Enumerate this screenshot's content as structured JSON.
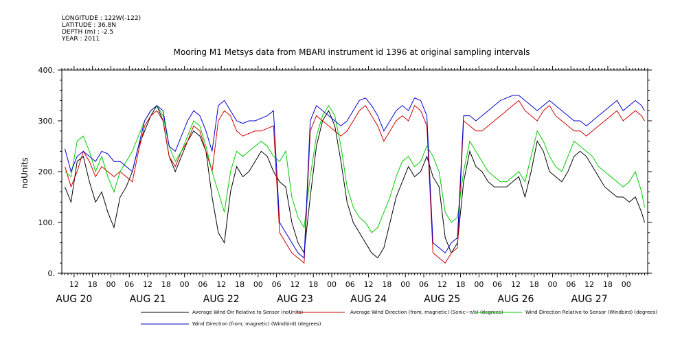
{
  "meta": {
    "longitude": "LONGITUDE : 122W(-122)",
    "latitude": "LATITUDE : 36.8N",
    "depth": "DEPTH (m) : -2.5",
    "year": "YEAR : 2011"
  },
  "chart_data": {
    "type": "line",
    "title": "Mooring M1 Metsys data from MBARI instrument id 1396 at original sampling intervals",
    "ylabel": "noUnits",
    "ylim": [
      0,
      400
    ],
    "yticks": [
      0,
      100,
      200,
      300,
      400
    ],
    "ytick_labels": [
      "0.",
      "100.",
      "200.",
      "300.",
      "400."
    ],
    "xlim": [
      8,
      199
    ],
    "hour_ticks": [
      12,
      18,
      24,
      30,
      36,
      42,
      48,
      54,
      60,
      66,
      72,
      78,
      84,
      90,
      96,
      102,
      108,
      114,
      120,
      126,
      132,
      138,
      144,
      150,
      156,
      162,
      168,
      174,
      180,
      186,
      192
    ],
    "hour_tick_labels": [
      "12",
      "18",
      "00",
      "06",
      "12",
      "18",
      "00",
      "06",
      "12",
      "18",
      "00",
      "06",
      "12",
      "18",
      "00",
      "06",
      "12",
      "18",
      "00",
      "06",
      "12",
      "18",
      "00",
      "06",
      "12",
      "18",
      "00",
      "06",
      "12",
      "18",
      "00"
    ],
    "day_labels": [
      {
        "hour": 12,
        "label": "AUG 20"
      },
      {
        "hour": 36,
        "label": "AUG 21"
      },
      {
        "hour": 60,
        "label": "AUG 22"
      },
      {
        "hour": 84,
        "label": "AUG 23"
      },
      {
        "hour": 108,
        "label": "AUG 24"
      },
      {
        "hour": 132,
        "label": "AUG 25"
      },
      {
        "hour": 156,
        "label": "AUG 26"
      },
      {
        "hour": 180,
        "label": "AUG 27"
      }
    ],
    "series": [
      {
        "name": "Average Wind Dir Relative to Sensor (noUnits)",
        "color": "#000000",
        "x": [
          9,
          11,
          13,
          15,
          17,
          19,
          21,
          23,
          25,
          27,
          29,
          31,
          33,
          35,
          37,
          39,
          41,
          43,
          45,
          47,
          49,
          51,
          53,
          55,
          57,
          59,
          61,
          63,
          65,
          67,
          69,
          71,
          73,
          75,
          77,
          79,
          81,
          83,
          85,
          87,
          89,
          91,
          93,
          95,
          97,
          99,
          101,
          103,
          105,
          107,
          109,
          111,
          113,
          115,
          117,
          119,
          121,
          123,
          125,
          127,
          129,
          131,
          133,
          135,
          137,
          139,
          141,
          143,
          145,
          147,
          149,
          151,
          153,
          155,
          157,
          159,
          161,
          163,
          165,
          167,
          169,
          171,
          173,
          175,
          177,
          179,
          181,
          183,
          185,
          187,
          189,
          191,
          193,
          195,
          197,
          198
        ],
        "y": [
          170,
          140,
          220,
          230,
          180,
          140,
          160,
          120,
          90,
          150,
          170,
          200,
          250,
          280,
          310,
          330,
          300,
          230,
          200,
          230,
          260,
          280,
          270,
          240,
          150,
          80,
          60,
          160,
          210,
          190,
          200,
          220,
          240,
          230,
          200,
          180,
          170,
          100,
          60,
          40,
          150,
          250,
          300,
          320,
          290,
          220,
          140,
          100,
          80,
          60,
          40,
          30,
          50,
          100,
          150,
          180,
          210,
          190,
          200,
          230,
          190,
          170,
          70,
          40,
          60,
          180,
          240,
          210,
          200,
          180,
          170,
          170,
          170,
          180,
          190,
          150,
          200,
          260,
          240,
          200,
          190,
          180,
          200,
          230,
          240,
          230,
          210,
          190,
          170,
          160,
          150,
          150,
          140,
          150,
          120,
          100
        ]
      },
      {
        "name": "Average Wind Direction (from, magnetic) (Sonic~n/s) (degrees)",
        "color": "#d00000",
        "x": [
          9,
          11,
          13,
          15,
          17,
          19,
          21,
          23,
          25,
          27,
          29,
          31,
          33,
          35,
          37,
          39,
          41,
          43,
          45,
          47,
          49,
          51,
          53,
          55,
          57,
          59,
          61,
          63,
          65,
          67,
          69,
          71,
          73,
          75,
          77,
          79,
          81,
          83,
          85,
          87,
          89,
          91,
          93,
          95,
          97,
          99,
          101,
          103,
          105,
          107,
          109,
          111,
          113,
          115,
          117,
          119,
          121,
          123,
          125,
          127,
          129,
          131,
          133,
          135,
          137,
          139,
          141,
          143,
          145,
          147,
          149,
          151,
          153,
          155,
          157,
          159,
          161,
          163,
          165,
          167,
          169,
          171,
          173,
          175,
          177,
          179,
          181,
          183,
          185,
          187,
          189,
          191,
          193,
          195,
          197,
          198
        ],
        "y": [
          210,
          170,
          200,
          240,
          220,
          190,
          210,
          200,
          190,
          200,
          190,
          180,
          240,
          290,
          310,
          320,
          300,
          230,
          210,
          240,
          260,
          290,
          280,
          240,
          200,
          300,
          320,
          310,
          280,
          270,
          275,
          280,
          280,
          285,
          290,
          80,
          60,
          40,
          30,
          20,
          280,
          310,
          300,
          290,
          280,
          270,
          280,
          300,
          320,
          330,
          310,
          290,
          260,
          280,
          300,
          310,
          300,
          330,
          320,
          290,
          40,
          30,
          20,
          40,
          50,
          300,
          290,
          280,
          280,
          290,
          300,
          310,
          320,
          330,
          340,
          320,
          310,
          300,
          320,
          330,
          310,
          300,
          290,
          280,
          280,
          270,
          280,
          290,
          300,
          310,
          320,
          300,
          310,
          320,
          310,
          300
        ]
      },
      {
        "name": "Wind Direction Relative to Sensor (Windbird) (degrees)",
        "color": "#00cc00",
        "x": [
          9,
          11,
          13,
          15,
          17,
          19,
          21,
          23,
          25,
          27,
          29,
          31,
          33,
          35,
          37,
          39,
          41,
          43,
          45,
          47,
          49,
          51,
          53,
          55,
          57,
          59,
          61,
          63,
          65,
          67,
          69,
          71,
          73,
          75,
          77,
          79,
          81,
          83,
          85,
          87,
          89,
          91,
          93,
          95,
          97,
          99,
          101,
          103,
          105,
          107,
          109,
          111,
          113,
          115,
          117,
          119,
          121,
          123,
          125,
          127,
          129,
          131,
          133,
          135,
          137,
          139,
          141,
          143,
          145,
          147,
          149,
          151,
          153,
          155,
          157,
          159,
          161,
          163,
          165,
          167,
          169,
          171,
          173,
          175,
          177,
          179,
          181,
          183,
          185,
          187,
          189,
          191,
          193,
          195,
          197,
          198
        ],
        "y": [
          200,
          190,
          260,
          270,
          240,
          200,
          230,
          190,
          160,
          200,
          220,
          240,
          270,
          300,
          320,
          330,
          310,
          250,
          220,
          240,
          270,
          300,
          290,
          250,
          200,
          160,
          120,
          200,
          240,
          230,
          240,
          250,
          260,
          250,
          230,
          220,
          240,
          150,
          110,
          90,
          190,
          270,
          310,
          330,
          310,
          250,
          170,
          130,
          110,
          100,
          80,
          90,
          120,
          150,
          190,
          220,
          230,
          210,
          220,
          250,
          230,
          200,
          120,
          100,
          110,
          200,
          260,
          240,
          220,
          200,
          190,
          180,
          180,
          190,
          200,
          180,
          230,
          280,
          260,
          230,
          210,
          200,
          230,
          260,
          250,
          240,
          230,
          210,
          200,
          190,
          180,
          170,
          180,
          200,
          160,
          130
        ]
      },
      {
        "name": "Wind Direction (from, magnetic) (Windbird) (degrees)",
        "color": "#0000d0",
        "x": [
          9,
          11,
          13,
          15,
          17,
          19,
          21,
          23,
          25,
          27,
          29,
          31,
          33,
          35,
          37,
          39,
          41,
          43,
          45,
          47,
          49,
          51,
          53,
          55,
          57,
          59,
          61,
          63,
          65,
          67,
          69,
          71,
          73,
          75,
          77,
          79,
          81,
          83,
          85,
          87,
          89,
          91,
          93,
          95,
          97,
          99,
          101,
          103,
          105,
          107,
          109,
          111,
          113,
          115,
          117,
          119,
          121,
          123,
          125,
          127,
          129,
          131,
          133,
          135,
          137,
          139,
          141,
          143,
          145,
          147,
          149,
          151,
          153,
          155,
          157,
          159,
          161,
          163,
          165,
          167,
          169,
          171,
          173,
          175,
          177,
          179,
          181,
          183,
          185,
          187,
          189,
          191,
          193,
          195,
          197,
          198
        ],
        "y": [
          245,
          200,
          230,
          240,
          230,
          220,
          240,
          235,
          220,
          220,
          210,
          200,
          250,
          300,
          320,
          330,
          320,
          250,
          240,
          270,
          300,
          320,
          310,
          280,
          240,
          330,
          340,
          320,
          300,
          295,
          300,
          300,
          305,
          310,
          320,
          100,
          80,
          60,
          40,
          30,
          300,
          330,
          320,
          310,
          300,
          290,
          300,
          320,
          340,
          345,
          330,
          310,
          280,
          300,
          320,
          330,
          320,
          345,
          340,
          310,
          60,
          50,
          40,
          60,
          70,
          310,
          310,
          300,
          310,
          320,
          330,
          340,
          345,
          350,
          350,
          340,
          330,
          320,
          330,
          340,
          330,
          320,
          310,
          300,
          300,
          290,
          300,
          310,
          320,
          330,
          340,
          320,
          330,
          340,
          330,
          320
        ]
      }
    ],
    "legend_placement": "bottom",
    "grid": false
  }
}
